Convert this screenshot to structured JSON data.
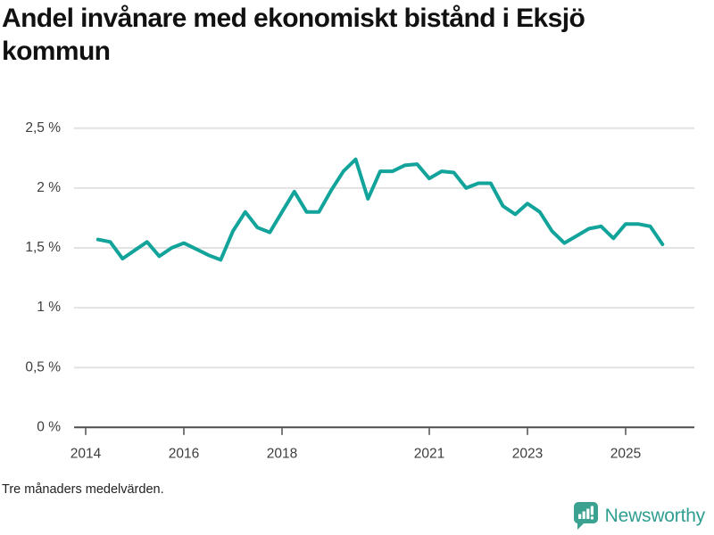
{
  "title": "Andel invånare med ekonomiskt bistånd i Eksjö kommun",
  "footnote": "Tre månaders medelvärden.",
  "brand": {
    "name": "Newsworthy",
    "icon": "speech-bubble-bar-chart-icon",
    "text_color": "#2f9e90",
    "icon_color": "#3ba191"
  },
  "colors": {
    "line": "#12a39b",
    "grid": "#e2e2e2",
    "axis": "#4d4d4d",
    "tick_text": "#3d3d3d"
  },
  "chart_data": {
    "type": "line",
    "title": "Andel invånare med ekonomiskt bistånd i Eksjö kommun",
    "xlabel": "",
    "ylabel": "",
    "ylim": [
      0,
      2.5
    ],
    "xlim": [
      2013.76,
      2026.4
    ],
    "grid": "horizontal",
    "legend": "none",
    "y_ticks": [
      0,
      0.5,
      1,
      1.5,
      2,
      2.5
    ],
    "y_tick_labels": [
      "0 %",
      "0,5 %",
      "1 %",
      "1,5 %",
      "2 %",
      "2,5 %"
    ],
    "x_ticks": [
      2014,
      2016,
      2018,
      2021,
      2023,
      2025
    ],
    "x_tick_labels": [
      "2014",
      "2016",
      "2018",
      "2021",
      "2023",
      "2025"
    ],
    "series": [
      {
        "name": "Andel invånare med ekonomiskt bistånd",
        "x": [
          2014.25,
          2014.5,
          2014.75,
          2015.0,
          2015.25,
          2015.5,
          2015.75,
          2016.0,
          2016.25,
          2016.5,
          2016.75,
          2017.0,
          2017.25,
          2017.5,
          2017.75,
          2018.0,
          2018.25,
          2018.5,
          2018.75,
          2019.0,
          2019.25,
          2019.5,
          2019.75,
          2020.0,
          2020.25,
          2020.5,
          2020.75,
          2021.0,
          2021.25,
          2021.5,
          2021.75,
          2022.0,
          2022.25,
          2022.5,
          2022.75,
          2023.0,
          2023.25,
          2023.5,
          2023.75,
          2024.0,
          2024.25,
          2024.5,
          2024.75,
          2025.0,
          2025.25,
          2025.5,
          2025.75
        ],
        "y": [
          1.57,
          1.55,
          1.41,
          1.48,
          1.55,
          1.43,
          1.5,
          1.54,
          1.49,
          1.44,
          1.4,
          1.64,
          1.8,
          1.67,
          1.63,
          1.8,
          1.97,
          1.8,
          1.8,
          1.98,
          2.14,
          2.24,
          1.91,
          2.14,
          2.14,
          2.19,
          2.2,
          2.08,
          2.14,
          2.13,
          2.0,
          2.04,
          2.04,
          1.85,
          1.78,
          1.87,
          1.8,
          1.64,
          1.54,
          1.6,
          1.66,
          1.68,
          1.58,
          1.7,
          1.7,
          1.68,
          1.53
        ]
      }
    ]
  }
}
